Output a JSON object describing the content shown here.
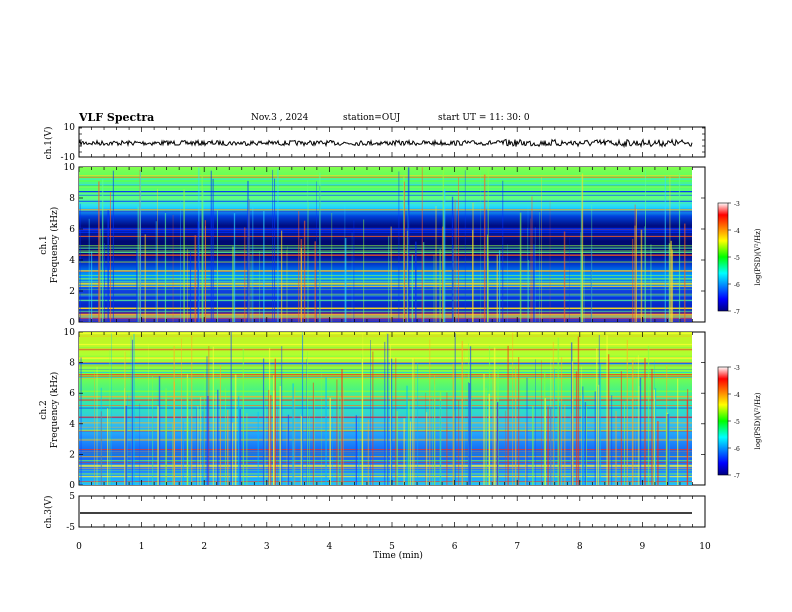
{
  "header": {
    "title": "VLF Spectra",
    "date": "Nov.3 , 2024",
    "station": "station=OUJ",
    "start_ut": "start UT = 11: 30: 0"
  },
  "chart_data": [
    {
      "type": "line",
      "ylabel": "ch.1(V)",
      "ylim": [
        -10,
        10
      ],
      "yticks": [
        "10",
        "-10"
      ],
      "description_value": "noisy waveform around -2 V",
      "baseline": -2
    },
    {
      "type": "heatmap",
      "ylabel_line1": "ch.1",
      "ylabel_line2": "Frequency (kHz)",
      "xlim": [
        0,
        10
      ],
      "ylim": [
        0,
        10
      ],
      "yticks": [
        "0",
        "2",
        "4",
        "6",
        "8",
        "10"
      ],
      "colorbar": {
        "label": "log(PSD)(V²/Hz)",
        "range": [
          -7,
          -3
        ],
        "ticks": [
          "-3",
          "-4",
          "-5",
          "-6",
          "-7"
        ]
      },
      "data_end_minute": 9.85
    },
    {
      "type": "heatmap",
      "ylabel_line1": "ch.2",
      "ylabel_line2": "Frequency (kHz)",
      "xlim": [
        0,
        10
      ],
      "ylim": [
        0,
        10
      ],
      "yticks": [
        "0",
        "2",
        "4",
        "6",
        "8",
        "10"
      ],
      "colorbar": {
        "label": "log(PSD)(V²/Hz)",
        "range": [
          -7,
          -3
        ],
        "ticks": [
          "-3",
          "-4",
          "-5",
          "-6",
          "-7"
        ]
      },
      "data_end_minute": 9.85
    },
    {
      "type": "line",
      "ylabel": "ch.3(V)",
      "ylim": [
        -5,
        5
      ],
      "yticks": [
        "5",
        "-5"
      ],
      "baseline": -1
    }
  ],
  "xaxis": {
    "label": "Time (min)",
    "ticks": [
      "0",
      "1",
      "2",
      "3",
      "4",
      "5",
      "6",
      "7",
      "8",
      "9",
      "10"
    ]
  }
}
